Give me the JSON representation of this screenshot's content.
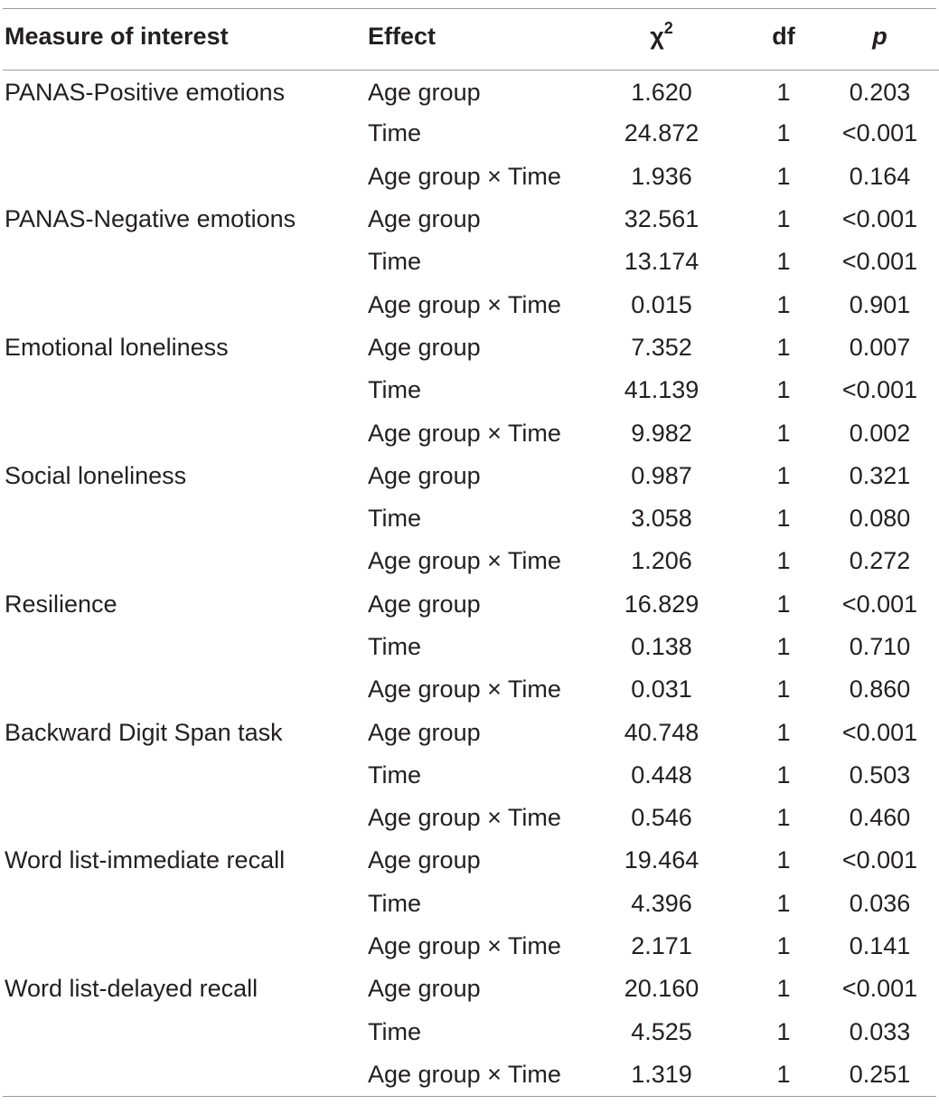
{
  "table": {
    "headers": {
      "measure": "Measure of interest",
      "effect": "Effect",
      "chi": "χ",
      "chi_sup": "2",
      "df": "df",
      "p": "p"
    },
    "rows": [
      {
        "measure": "PANAS-Positive emotions",
        "effect": "Age group",
        "chi": "1.620",
        "df": "1",
        "p": "0.203"
      },
      {
        "measure": "",
        "effect": "Time",
        "chi": "24.872",
        "df": "1",
        "p": "<0.001"
      },
      {
        "measure": "",
        "effect": "Age group × Time",
        "chi": "1.936",
        "df": "1",
        "p": "0.164"
      },
      {
        "measure": "PANAS-Negative emotions",
        "effect": "Age group",
        "chi": "32.561",
        "df": "1",
        "p": "<0.001"
      },
      {
        "measure": "",
        "effect": "Time",
        "chi": "13.174",
        "df": "1",
        "p": "<0.001"
      },
      {
        "measure": "",
        "effect": "Age group × Time",
        "chi": "0.015",
        "df": "1",
        "p": "0.901"
      },
      {
        "measure": "Emotional loneliness",
        "effect": "Age group",
        "chi": "7.352",
        "df": "1",
        "p": "0.007"
      },
      {
        "measure": "",
        "effect": "Time",
        "chi": "41.139",
        "df": "1",
        "p": "<0.001"
      },
      {
        "measure": "",
        "effect": "Age group × Time",
        "chi": "9.982",
        "df": "1",
        "p": "0.002"
      },
      {
        "measure": "Social loneliness",
        "effect": "Age group",
        "chi": "0.987",
        "df": "1",
        "p": "0.321"
      },
      {
        "measure": "",
        "effect": "Time",
        "chi": "3.058",
        "df": "1",
        "p": "0.080"
      },
      {
        "measure": "",
        "effect": "Age group × Time",
        "chi": "1.206",
        "df": "1",
        "p": "0.272"
      },
      {
        "measure": "Resilience",
        "effect": "Age group",
        "chi": "16.829",
        "df": "1",
        "p": "<0.001"
      },
      {
        "measure": "",
        "effect": "Time",
        "chi": "0.138",
        "df": "1",
        "p": "0.710"
      },
      {
        "measure": "",
        "effect": "Age group × Time",
        "chi": "0.031",
        "df": "1",
        "p": "0.860"
      },
      {
        "measure": "Backward Digit Span task",
        "effect": "Age group",
        "chi": "40.748",
        "df": "1",
        "p": "<0.001"
      },
      {
        "measure": "",
        "effect": "Time",
        "chi": "0.448",
        "df": "1",
        "p": "0.503"
      },
      {
        "measure": "",
        "effect": "Age group × Time",
        "chi": "0.546",
        "df": "1",
        "p": "0.460"
      },
      {
        "measure": "Word list-immediate recall",
        "effect": "Age group",
        "chi": "19.464",
        "df": "1",
        "p": "<0.001"
      },
      {
        "measure": "",
        "effect": "Time",
        "chi": "4.396",
        "df": "1",
        "p": "0.036"
      },
      {
        "measure": "",
        "effect": "Age group × Time",
        "chi": "2.171",
        "df": "1",
        "p": "0.141"
      },
      {
        "measure": "Word list-delayed recall",
        "effect": "Age group",
        "chi": "20.160",
        "df": "1",
        "p": "<0.001"
      },
      {
        "measure": "",
        "effect": "Time",
        "chi": "4.525",
        "df": "1",
        "p": "0.033"
      },
      {
        "measure": "",
        "effect": "Age group × Time",
        "chi": "1.319",
        "df": "1",
        "p": "0.251"
      }
    ]
  }
}
